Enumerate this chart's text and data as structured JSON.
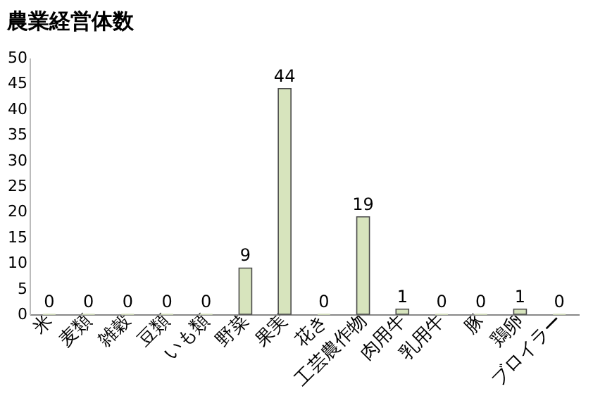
{
  "chart_data": {
    "type": "bar",
    "title": "農業経営体数",
    "categories": [
      "米",
      "麦類",
      "雑穀",
      "豆類",
      "いも類",
      "野菜",
      "果実",
      "花き",
      "工芸農作物",
      "肉用牛",
      "乳用牛",
      "豚",
      "鶏卵",
      "ブロイラー"
    ],
    "values": [
      0,
      0,
      0,
      0,
      0,
      9,
      44,
      0,
      19,
      1,
      0,
      0,
      1,
      0
    ],
    "color": "#d7e4bd",
    "ylim": [
      0,
      50
    ],
    "yticks": [
      0,
      5,
      10,
      15,
      20,
      25,
      30,
      35,
      40,
      45,
      50
    ],
    "grid": false,
    "data_labels": true
  }
}
